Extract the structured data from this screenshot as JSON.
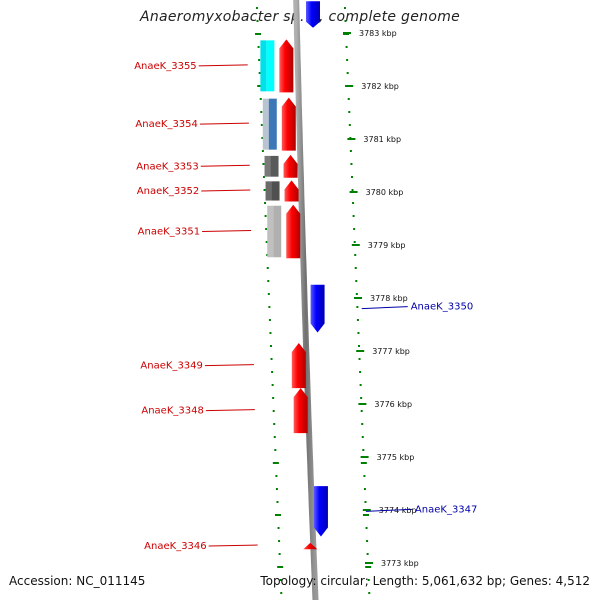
{
  "title": "Anaeromyxobacter sp. K, complete genome",
  "accession": "Accession: NC_011145",
  "summary": "Topology: circular; Length: 5,061,632 bp; Genes: 4,512",
  "colors": {
    "forward": "#ff0000",
    "reverse": "#0000ff",
    "backbone": "#808080",
    "ticks": "#008000",
    "label_forward": "#cc0000",
    "label_reverse": "#0000aa"
  },
  "scale": {
    "unit": "kbp",
    "ticks": [
      {
        "value": 3783,
        "label": "3783 kbp"
      },
      {
        "value": 3782,
        "label": "3782 kbp"
      },
      {
        "value": 3781,
        "label": "3781 kbp"
      },
      {
        "value": 3780,
        "label": "3780 kbp"
      },
      {
        "value": 3779,
        "label": "3779 kbp"
      },
      {
        "value": 3778,
        "label": "3778 kbp"
      },
      {
        "value": 3777,
        "label": "3777 kbp"
      },
      {
        "value": 3776,
        "label": "3776 kbp"
      },
      {
        "value": 3775,
        "label": "3775 kbp"
      },
      {
        "value": 3774,
        "label": "3774 kbp"
      },
      {
        "value": 3773,
        "label": "3773 kbp"
      }
    ]
  },
  "genes": [
    {
      "name": "AnaeK_3355",
      "strand": "+",
      "start": 3781.88,
      "end": 3782.88
    },
    {
      "name": "AnaeK_3354",
      "strand": "+",
      "start": 3780.78,
      "end": 3781.78
    },
    {
      "name": "AnaeK_3353",
      "strand": "+",
      "start": 3780.27,
      "end": 3780.7
    },
    {
      "name": "AnaeK_3352",
      "strand": "+",
      "start": 3779.82,
      "end": 3780.22
    },
    {
      "name": "AnaeK_3351",
      "strand": "+",
      "start": 3778.75,
      "end": 3779.76
    },
    {
      "name": "AnaeK_3350",
      "strand": "-",
      "start": 3777.35,
      "end": 3778.25
    },
    {
      "name": "AnaeK_3349",
      "strand": "+",
      "start": 3776.3,
      "end": 3777.15
    },
    {
      "name": "AnaeK_3348",
      "strand": "+",
      "start": 3775.45,
      "end": 3776.3
    },
    {
      "name": "AnaeK_3347",
      "strand": "-",
      "start": 3773.5,
      "end": 3774.45
    },
    {
      "name": "AnaeK_3346",
      "strand": "+",
      "start": 3773.26,
      "end": 3773.38
    }
  ],
  "top_partial_gene": {
    "strand": "-",
    "start": 3783.1,
    "end": 3783.6
  },
  "annotation_blocks": [
    {
      "gene": "AnaeK_3355",
      "colors": [
        "#00e0ea",
        "#00ffff"
      ]
    },
    {
      "gene": "AnaeK_3354",
      "colors": [
        "#b8c4d0",
        "#3c78b8"
      ]
    },
    {
      "gene": "AnaeK_3353",
      "colors": [
        "#7a7a7a",
        "#5a5a5a"
      ]
    },
    {
      "gene": "AnaeK_3352",
      "colors": [
        "#6a6a6a",
        "#505050"
      ]
    },
    {
      "gene": "AnaeK_3351",
      "colors": [
        "#c0c0c0",
        "#b0b0b0"
      ]
    }
  ]
}
